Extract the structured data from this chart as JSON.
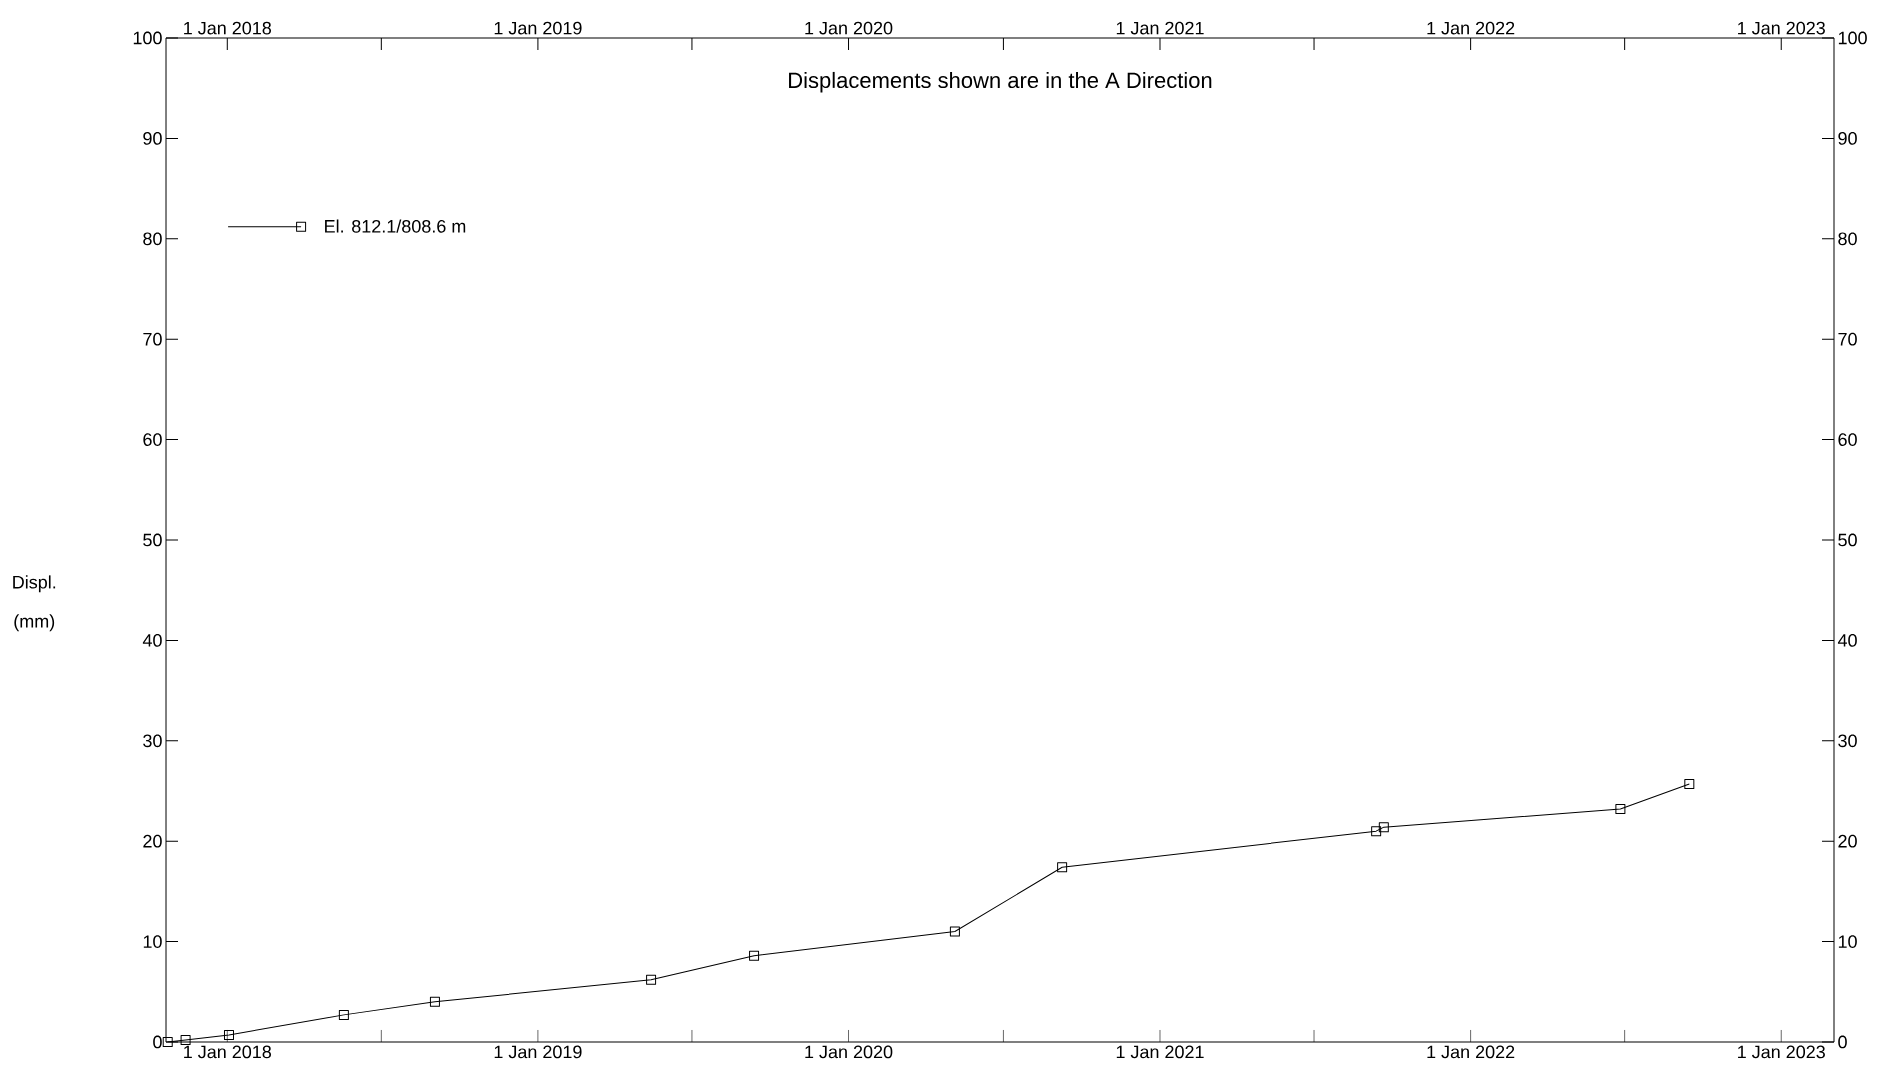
{
  "chart_data": {
    "type": "line",
    "title": "Displacements shown are in the  A Direction",
    "ylabel": "Displ. (mm)",
    "x": [
      "2017-10-23",
      "2017-11-13",
      "2018-01-03",
      "2018-05-18",
      "2018-09-02",
      "2019-05-14",
      "2019-09-12",
      "2020-05-05",
      "2020-09-08",
      "2021-09-12",
      "2021-09-21",
      "2022-06-26",
      "2022-09-15"
    ],
    "series": [
      {
        "name": "El. 812.1/808.6 m",
        "color": "#000000",
        "values": [
          0,
          0.2,
          0.7,
          2.7,
          4.0,
          6.2,
          8.6,
          11.0,
          17.4,
          21.0,
          21.4,
          23.2,
          25.7
        ]
      }
    ],
    "xlim": [
      "2017-10-21",
      "2023-03-04"
    ],
    "xticks": [
      {
        "value": "2018-01-01",
        "label": "1 Jan 2018"
      },
      {
        "value": "2018-07-01",
        "label": null
      },
      {
        "value": "2019-01-01",
        "label": "1 Jan 2019"
      },
      {
        "value": "2019-07-01",
        "label": null
      },
      {
        "value": "2020-01-01",
        "label": "1 Jan 2020"
      },
      {
        "value": "2020-07-01",
        "label": null
      },
      {
        "value": "2021-01-01",
        "label": "1 Jan 2021"
      },
      {
        "value": "2021-07-01",
        "label": null
      },
      {
        "value": "2022-01-01",
        "label": "1 Jan 2022"
      },
      {
        "value": "2022-07-01",
        "label": null
      },
      {
        "value": "2023-01-01",
        "label": "1 Jan 2023"
      }
    ],
    "x2lim": [
      "2017-10-21",
      "2023-03-04"
    ],
    "x2ticks": [
      {
        "value": "2018-01-01",
        "label": "1 Jan 2018"
      },
      {
        "value": "2018-07-01",
        "label": null
      },
      {
        "value": "2019-01-01",
        "label": "1 Jan 2019"
      },
      {
        "value": "2019-07-01",
        "label": null
      },
      {
        "value": "2020-01-01",
        "label": "1 Jan 2020"
      },
      {
        "value": "2020-07-01",
        "label": null
      },
      {
        "value": "2021-01-01",
        "label": "1 Jan 2021"
      },
      {
        "value": "2021-07-01",
        "label": null
      },
      {
        "value": "2022-01-01",
        "label": "1 Jan 2022"
      },
      {
        "value": "2022-07-01",
        "label": null
      },
      {
        "value": "2023-01-01",
        "label": "1 Jan 2023"
      }
    ],
    "ylim": [
      0,
      100
    ],
    "yticks": [
      0,
      10,
      20,
      30,
      40,
      50,
      60,
      70,
      80,
      90,
      100
    ],
    "y2lim": [
      0,
      100
    ],
    "y2ticks": [
      0,
      10,
      20,
      30,
      40,
      50,
      60,
      70,
      80,
      90,
      100
    ],
    "legend": "top left",
    "marker": "square",
    "line_style": "solid",
    "grid": false
  }
}
